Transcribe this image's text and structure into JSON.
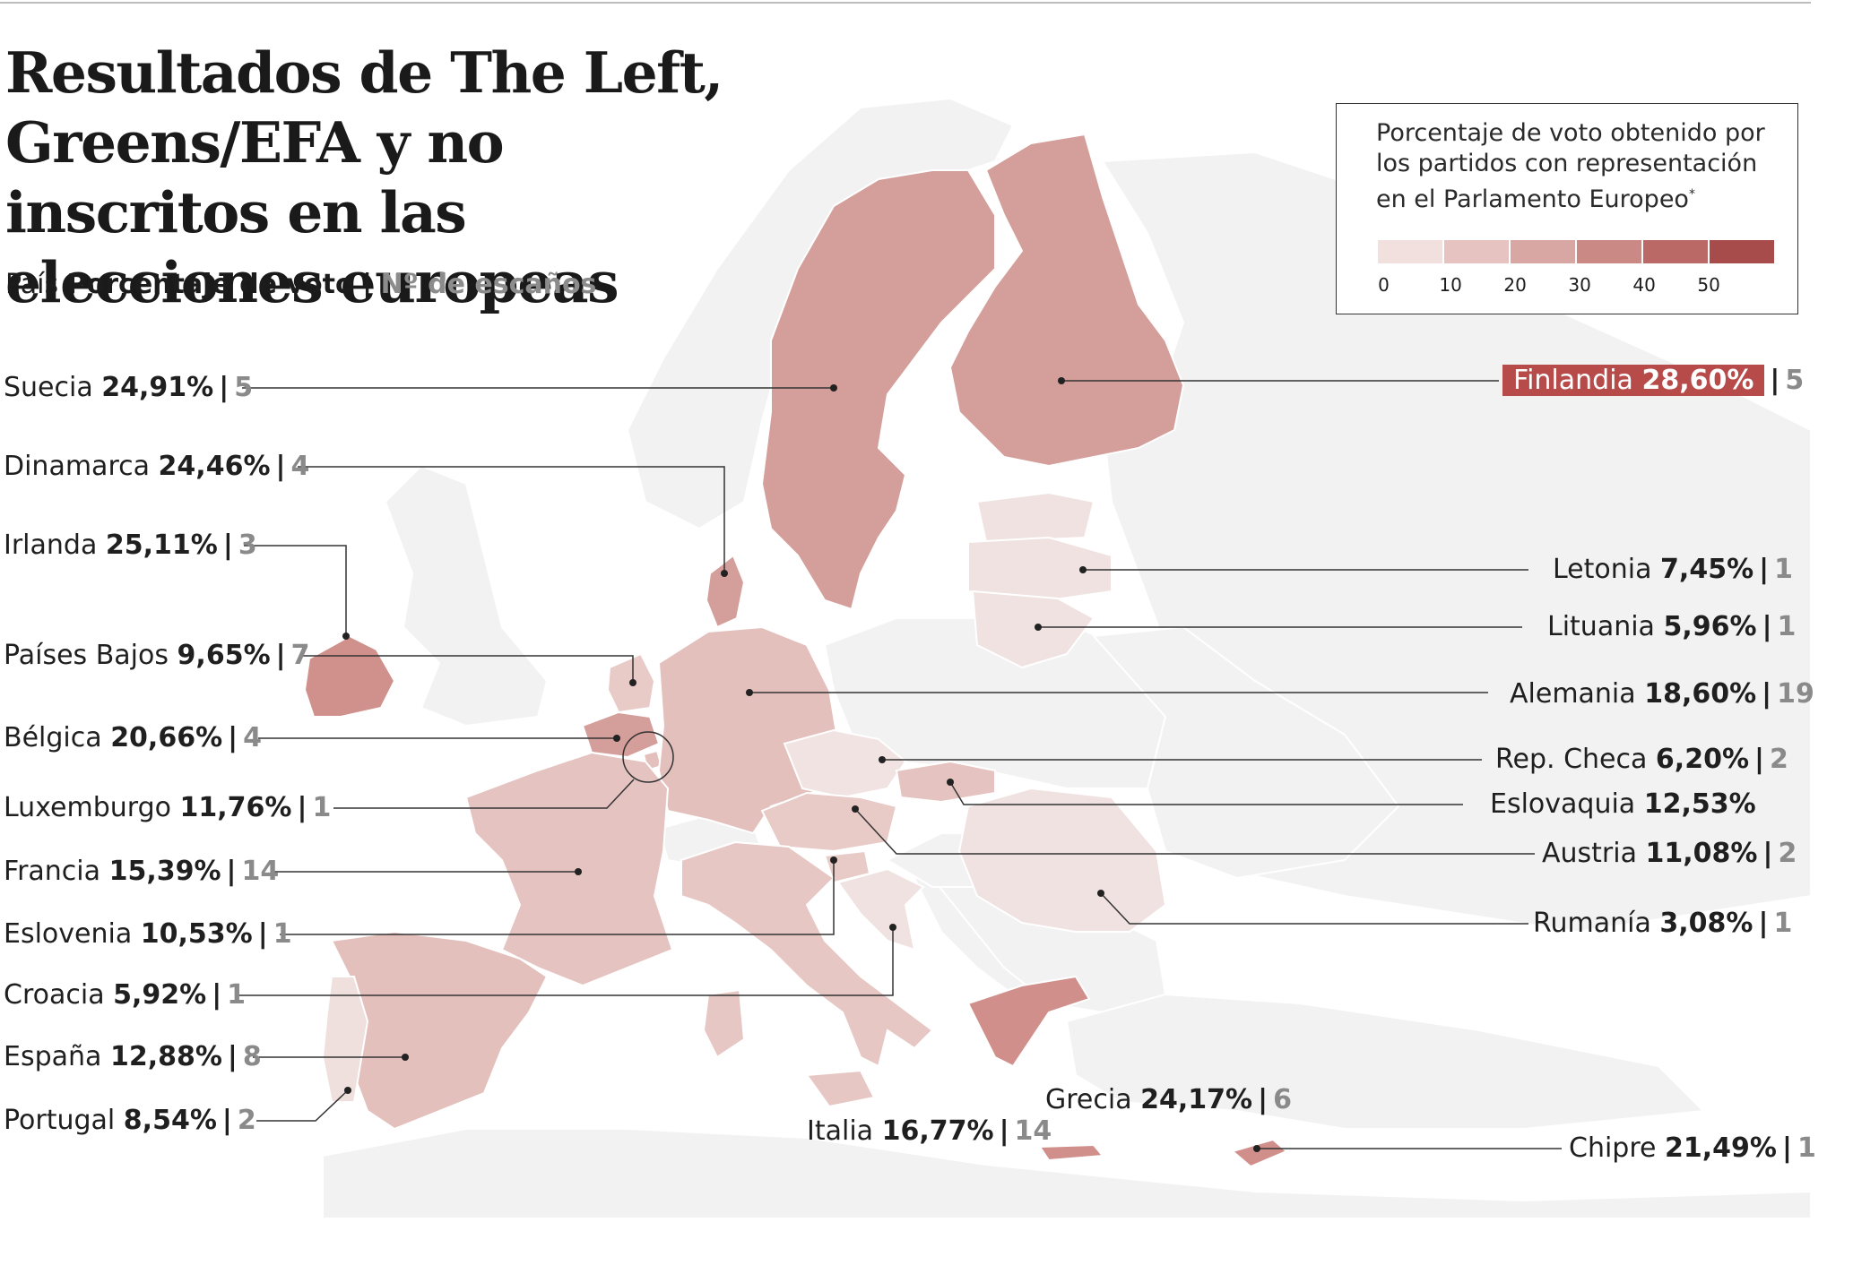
{
  "title": "Resultados de The Left, Greens/EFA y no inscritos en las elecciones europeas",
  "subtitle": {
    "country": "País",
    "percent": "Porcentaje de voto",
    "separator": "|",
    "seats": "Nº de escaños"
  },
  "legend": {
    "text": "Porcentaje de voto obtenido por los partidos con representación en el Parlamento Europeo",
    "asterisk": "*",
    "ticks": [
      "0",
      "10",
      "20",
      "30",
      "40",
      "50"
    ],
    "colors": [
      "#f1e0de",
      "#e6c3c0",
      "#d9a7a3",
      "#cb8986",
      "#bb6967",
      "#a84b4b"
    ]
  },
  "colors": {
    "land_base": "#f2f2f2",
    "border": "#ffffff",
    "leader": "#333333",
    "finland_badge": "#b74b4a"
  },
  "countries": [
    {
      "id": "suecia",
      "name": "Suecia",
      "pct": "24,91%",
      "seats": "5"
    },
    {
      "id": "dinamarca",
      "name": "Dinamarca",
      "pct": "24,46%",
      "seats": "4"
    },
    {
      "id": "irlanda",
      "name": "Irlanda",
      "pct": "25,11%",
      "seats": "3"
    },
    {
      "id": "paises-bajos",
      "name": "Países Bajos",
      "pct": "9,65%",
      "seats": "7"
    },
    {
      "id": "belgica",
      "name": "Bélgica",
      "pct": "20,66%",
      "seats": "4"
    },
    {
      "id": "luxemburgo",
      "name": "Luxemburgo",
      "pct": "11,76%",
      "seats": "1"
    },
    {
      "id": "francia",
      "name": "Francia",
      "pct": "15,39%",
      "seats": "14"
    },
    {
      "id": "eslovenia",
      "name": "Eslovenia",
      "pct": "10,53%",
      "seats": "1"
    },
    {
      "id": "croacia",
      "name": "Croacia",
      "pct": "5,92%",
      "seats": "1"
    },
    {
      "id": "espana",
      "name": "España",
      "pct": "12,88%",
      "seats": "8"
    },
    {
      "id": "portugal",
      "name": "Portugal",
      "pct": "8,54%",
      "seats": "2"
    },
    {
      "id": "finlandia",
      "name": "Finlandia",
      "pct": "28,60%",
      "seats": "5"
    },
    {
      "id": "letonia",
      "name": "Letonia",
      "pct": "7,45%",
      "seats": "1"
    },
    {
      "id": "lituania",
      "name": "Lituania",
      "pct": "5,96%",
      "seats": "1"
    },
    {
      "id": "alemania",
      "name": "Alemania",
      "pct": "18,60%",
      "seats": "19"
    },
    {
      "id": "rep-checa",
      "name": "Rep. Checa",
      "pct": "6,20%",
      "seats": "2"
    },
    {
      "id": "eslovaquia",
      "name": "Eslovaquia",
      "pct": "12,53%",
      "seats": ""
    },
    {
      "id": "austria",
      "name": "Austria",
      "pct": "11,08%",
      "seats": "2"
    },
    {
      "id": "rumania",
      "name": "Rumanía",
      "pct": "3,08%",
      "seats": "1"
    },
    {
      "id": "grecia",
      "name": "Grecia",
      "pct": "24,17%",
      "seats": "6"
    },
    {
      "id": "italia",
      "name": "Italia",
      "pct": "16,77%",
      "seats": "14"
    },
    {
      "id": "chipre",
      "name": "Chipre",
      "pct": "21,49%",
      "seats": "1"
    }
  ]
}
